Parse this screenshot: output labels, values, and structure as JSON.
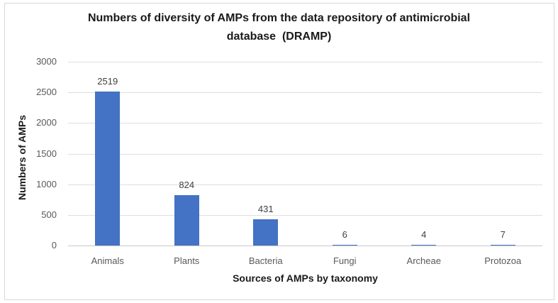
{
  "page": {
    "background": "#ffffff",
    "border_color": "#d9d9d9"
  },
  "chart_data": {
    "type": "bar",
    "title": "Numbers of diversity of AMPs from the data repository of antimicrobial database  (DRAMP)",
    "title_lines": [
      "Numbers of diversity of AMPs from the data repository of antimicrobial",
      "database  (DRAMP)"
    ],
    "categories": [
      "Animals",
      "Plants",
      "Bacteria",
      "Fungi",
      "Archeae",
      "Protozoa"
    ],
    "values": [
      2519,
      824,
      431,
      6,
      4,
      7
    ],
    "xlabel": "Sources of AMPs by taxonomy",
    "ylabel": "Numbers of AMPs",
    "ylim": [
      0,
      3000
    ],
    "yticks": [
      0,
      500,
      1000,
      1500,
      2000,
      2500,
      3000
    ],
    "grid": true,
    "legend": false,
    "bar_color": "#4472c4",
    "colors": {
      "gridline": "#dedede",
      "axis_line": "#c9c9c9",
      "tick_label": "#595959",
      "data_label": "#404040",
      "title": "#1a1a1a"
    }
  }
}
